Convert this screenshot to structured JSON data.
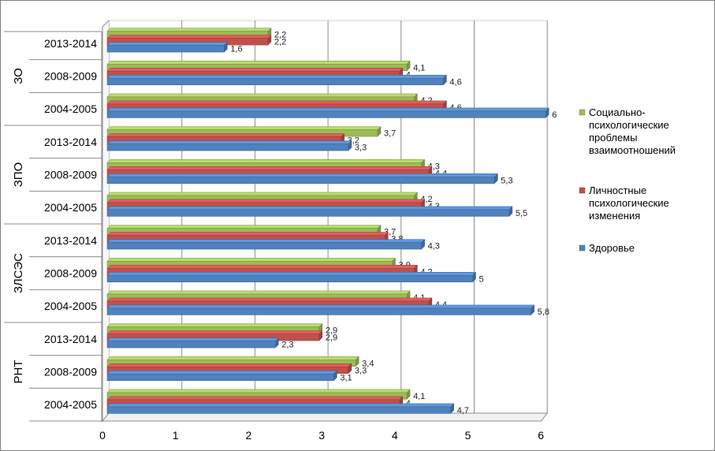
{
  "chart_data": {
    "type": "bar",
    "orientation": "horizontal",
    "style": "3d-clustered",
    "title": "",
    "xlabel": "",
    "ylabel": "",
    "xlim": [
      0,
      6
    ],
    "x_ticks": [
      "0",
      "1",
      "2",
      "3",
      "4",
      "5",
      "6"
    ],
    "grid": true,
    "legend_position": "right",
    "groups": [
      {
        "label": "ЗО",
        "categories": [
          "2013-2014",
          "2008-2009",
          "2004-2005"
        ]
      },
      {
        "label": "ЗПО",
        "categories": [
          "2013-2014",
          "2008-2009",
          "2004-2005"
        ]
      },
      {
        "label": "ЗЛСЭС",
        "categories": [
          "2013-2014",
          "2008-2009",
          "2004-2005"
        ]
      },
      {
        "label": "РНТ",
        "categories": [
          "2013-2014",
          "2008-2009",
          "2004-2005"
        ]
      }
    ],
    "series": [
      {
        "name": "Социально-психологические проблемы взаимоотношений",
        "color": "#9bbb59",
        "values": [
          2.2,
          4.1,
          4.2,
          3.7,
          4.3,
          4.2,
          3.7,
          3.9,
          4.1,
          2.9,
          3.4,
          4.1
        ],
        "labels": [
          "2,2",
          "4,1",
          "4,2",
          "3,7",
          "4,3",
          "4,2",
          "3,7",
          "3,9",
          "4,1",
          "2,9",
          "3,4",
          "4,1"
        ]
      },
      {
        "name": "Личностные психологические изменения",
        "color": "#c0504d",
        "values": [
          2.2,
          4,
          4.6,
          3.2,
          4.4,
          4.3,
          3.8,
          4.2,
          4.4,
          2.9,
          3.3,
          4
        ],
        "labels": [
          "2,2",
          "4",
          "4,6",
          "3,2",
          "4,4",
          "4,3",
          "3,8",
          "4,2",
          "4,4",
          "2,9",
          "3,3",
          "4"
        ]
      },
      {
        "name": "Здоровье",
        "color": "#4f81bd",
        "values": [
          1.6,
          4.6,
          6,
          3.3,
          5.3,
          5.5,
          4.3,
          5,
          5.8,
          2.3,
          3.1,
          4.7
        ],
        "labels": [
          "1,6",
          "4,6",
          "6",
          "3,3",
          "5,3",
          "5,5",
          "4,3",
          "5",
          "5,8",
          "2,3",
          "3,1",
          "4,7"
        ]
      }
    ],
    "legend": [
      {
        "lines": [
          "Социально-",
          "психологические",
          "проблемы",
          "взаимоотношений"
        ],
        "color": "#9bbb59"
      },
      {
        "lines": [
          "Личностные",
          "психологические",
          "изменения"
        ],
        "color": "#c0504d"
      },
      {
        "lines": [
          "Здоровье"
        ],
        "color": "#4f81bd"
      }
    ]
  }
}
